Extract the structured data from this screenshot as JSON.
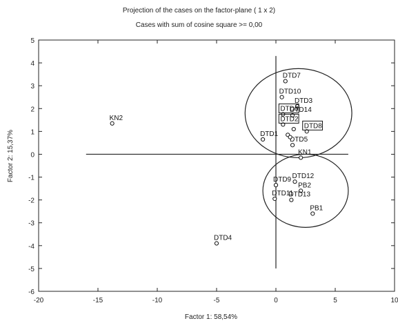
{
  "chart_data": {
    "type": "scatter",
    "title": "Projection of the cases on the factor-plane (  1 x   2)",
    "subtitle": "Cases with sum of cosine square >= 0,00",
    "xlabel": "Factor 1: 58,54%",
    "ylabel": "Factor 2: 15,37%",
    "xlim": [
      -20,
      10
    ],
    "ylim": [
      -6,
      5
    ],
    "xticks": [
      -20,
      -15,
      -10,
      -5,
      0,
      5,
      10
    ],
    "yticks": [
      -6,
      -5,
      -4,
      -3,
      -2,
      -1,
      0,
      1,
      2,
      3,
      4,
      5
    ],
    "grid": false,
    "points": [
      {
        "label": "KN2",
        "x": -13.8,
        "y": 1.35,
        "boxed": false
      },
      {
        "label": "DTD4",
        "x": -5.0,
        "y": -3.9,
        "boxed": false
      },
      {
        "label": "DTD7",
        "x": 0.8,
        "y": 3.2,
        "boxed": false
      },
      {
        "label": "DTD10",
        "x": 0.5,
        "y": 2.5,
        "boxed": false
      },
      {
        "label": "DTD3",
        "x": 1.8,
        "y": 2.1,
        "boxed": false
      },
      {
        "label": "DTD6",
        "x": 0.6,
        "y": 1.75,
        "boxed": true
      },
      {
        "label": "DTD14",
        "x": 1.4,
        "y": 1.7,
        "boxed": false
      },
      {
        "label": "DTD2",
        "x": 0.6,
        "y": 1.3,
        "boxed": true
      },
      {
        "label": "DTD8",
        "x": 2.6,
        "y": 1.0,
        "boxed": true
      },
      {
        "label": "DTD1",
        "x": -1.1,
        "y": 0.65,
        "boxed": false
      },
      {
        "label": "DTD5",
        "x": 1.4,
        "y": 0.4,
        "boxed": false
      },
      {
        "label": "",
        "x": 1.0,
        "y": 0.85,
        "boxed": false
      },
      {
        "label": "",
        "x": 1.2,
        "y": 0.75,
        "boxed": false
      },
      {
        "label": "",
        "x": 1.5,
        "y": 1.1,
        "boxed": false
      },
      {
        "label": "KN1",
        "x": 2.1,
        "y": -0.15,
        "boxed": false
      },
      {
        "label": "DTD12",
        "x": 1.6,
        "y": -1.2,
        "boxed": false
      },
      {
        "label": "DTD9",
        "x": 0.0,
        "y": -1.35,
        "boxed": false
      },
      {
        "label": "PB2",
        "x": 2.1,
        "y": -1.6,
        "boxed": false
      },
      {
        "label": "DTD11",
        "x": -0.1,
        "y": -1.95,
        "boxed": false
      },
      {
        "label": "DTD13",
        "x": 1.3,
        "y": -2.0,
        "boxed": false
      },
      {
        "label": "PB1",
        "x": 3.1,
        "y": -2.6,
        "boxed": false
      }
    ],
    "ellipses": [
      {
        "cx": 1.9,
        "cy": 1.8,
        "rx": 4.5,
        "ry": 1.95
      },
      {
        "cx": 2.5,
        "cy": -1.6,
        "rx": 3.6,
        "ry": 1.6
      }
    ],
    "reference_lines": {
      "x": 0,
      "y": 0
    }
  }
}
